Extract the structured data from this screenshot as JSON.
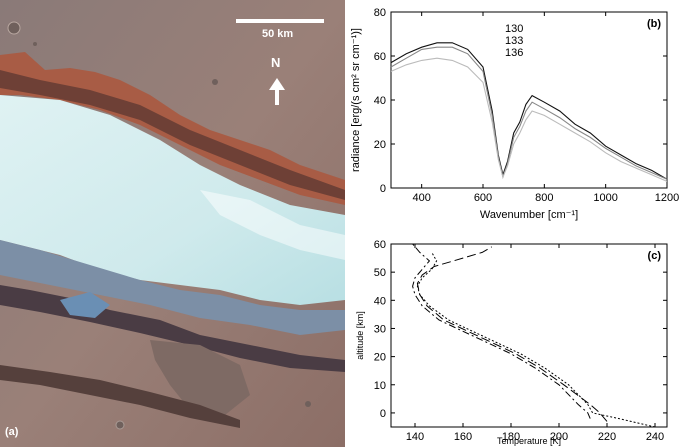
{
  "panel_a": {
    "label": "(a)",
    "scale_bar_label": "50 km",
    "north_label": "N"
  },
  "chart_data": [
    {
      "type": "line",
      "panel_label": "(b)",
      "xlabel": "Wavenumber [cm⁻¹]",
      "ylabel": "radiance [erg/(s cm² sr cm⁻¹)]",
      "xlim": [
        300,
        1200
      ],
      "ylim": [
        0,
        80
      ],
      "x_ticks": [
        400,
        600,
        800,
        1000,
        1200
      ],
      "y_ticks": [
        0,
        20,
        40,
        60,
        80
      ],
      "legend": [
        "130",
        "133",
        "136"
      ],
      "legend_placement": "top-center",
      "colors": [
        "#111111",
        "#888888",
        "#bbbbbb"
      ],
      "series": [
        {
          "name": "130",
          "x": [
            300,
            350,
            400,
            450,
            500,
            550,
            600,
            630,
            650,
            665,
            680,
            700,
            720,
            740,
            760,
            800,
            850,
            900,
            950,
            1000,
            1050,
            1100,
            1150,
            1200
          ],
          "y": [
            57,
            61,
            64,
            66,
            66,
            63,
            55,
            35,
            15,
            6,
            12,
            25,
            30,
            38,
            42,
            39,
            35,
            29,
            25,
            19,
            15,
            11,
            8,
            4
          ]
        },
        {
          "name": "133",
          "x": [
            300,
            350,
            400,
            450,
            500,
            550,
            600,
            630,
            650,
            665,
            680,
            700,
            720,
            740,
            760,
            800,
            850,
            900,
            950,
            1000,
            1050,
            1100,
            1150,
            1200
          ],
          "y": [
            55,
            59,
            63,
            64,
            64,
            61,
            53,
            33,
            14,
            5,
            11,
            23,
            28,
            35,
            39,
            36,
            32,
            27,
            23,
            18,
            14,
            10,
            7,
            4
          ]
        },
        {
          "name": "136",
          "x": [
            300,
            350,
            400,
            450,
            500,
            550,
            600,
            630,
            650,
            665,
            680,
            700,
            720,
            740,
            760,
            800,
            850,
            900,
            950,
            1000,
            1050,
            1100,
            1150,
            1200
          ],
          "y": [
            53,
            56,
            58,
            59,
            58,
            55,
            48,
            30,
            13,
            5,
            10,
            20,
            25,
            31,
            35,
            33,
            29,
            25,
            21,
            16,
            12,
            9,
            6,
            3
          ]
        }
      ]
    },
    {
      "type": "line",
      "panel_label": "(c)",
      "xlabel": "Temperature [K]",
      "ylabel": "altitude [km]",
      "xlim": [
        130,
        245
      ],
      "ylim": [
        -5,
        60
      ],
      "x_ticks": [
        140,
        160,
        180,
        200,
        220,
        240
      ],
      "y_ticks": [
        0,
        10,
        20,
        30,
        40,
        50,
        60
      ],
      "series": [
        {
          "style": "dash-dot",
          "x": [
            213,
            212,
            208,
            200,
            190,
            180,
            170,
            160,
            150,
            143,
            140,
            139,
            140,
            143,
            146,
            142,
            139
          ],
          "y": [
            -2,
            0,
            3,
            10,
            16,
            21,
            25,
            29,
            33,
            38,
            42,
            45,
            48,
            51,
            54,
            57,
            60
          ]
        },
        {
          "style": "long-dash",
          "x": [
            220,
            217,
            213,
            202,
            192,
            182,
            172,
            162,
            152,
            145,
            142,
            141,
            143,
            148,
            156,
            168,
            172
          ],
          "y": [
            -3,
            0,
            3,
            10,
            16,
            21,
            25,
            29,
            33,
            38,
            42,
            46,
            49,
            52,
            54,
            57,
            59
          ]
        },
        {
          "style": "dotted",
          "x": [
            240,
            225,
            214,
            212,
            204,
            194,
            184,
            174,
            164,
            154,
            146,
            142,
            141,
            143,
            147,
            149,
            147
          ],
          "y": [
            -5,
            -2,
            0,
            3,
            10,
            16,
            21,
            25,
            29,
            33,
            38,
            42,
            45,
            48,
            51,
            54,
            57
          ]
        }
      ]
    }
  ]
}
